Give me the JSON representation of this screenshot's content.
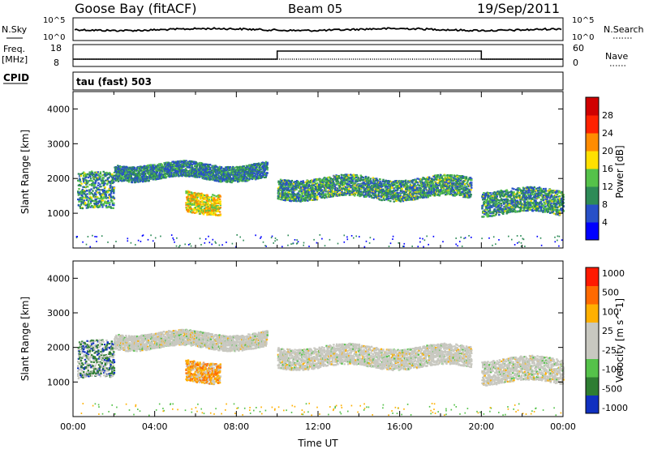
{
  "header": {
    "station": "Goose Bay (fitACF)",
    "beam": "Beam 05",
    "date": "19/Sep/2011"
  },
  "noise_panel": {
    "left_label": "N.Sky",
    "right_label": "N.Search",
    "left_ticks": [
      "10^5",
      "10^0"
    ],
    "right_ticks": [
      "10^5",
      "10^0"
    ]
  },
  "freq_panel": {
    "left_label_line1": "Freq.",
    "left_label_line2": "[MHz]",
    "right_label": "Nave",
    "left_ticks": [
      "18",
      "8"
    ],
    "right_ticks": [
      "60",
      "0"
    ],
    "cpid_label": "CPID",
    "cpid_value": "tau (fast) 503",
    "nave_step": [
      {
        "hour": 0,
        "value": 0
      },
      {
        "hour": 10,
        "value": 60
      },
      {
        "hour": 20,
        "value": 0
      }
    ]
  },
  "chart_data": [
    {
      "type": "heatmap",
      "quantity": "Power",
      "ylabel": "Slant Range [km]",
      "ylim": [
        0,
        4500
      ],
      "yticks": [
        "1000",
        "2000",
        "3000",
        "4000"
      ],
      "colorbar_label": "Power [dB]",
      "colorbar_ticks": [
        "4",
        "8",
        "12",
        "16",
        "20",
        "24",
        "28"
      ],
      "colorbar_colors": [
        "#0000ff",
        "#2850c8",
        "#2e8b57",
        "#55c24a",
        "#ffe000",
        "#ff8c00",
        "#ff2200",
        "#d00000"
      ],
      "echo_bands": [
        {
          "hours": [
            0.2,
            2.0
          ],
          "range_km": [
            1100,
            2150
          ],
          "level": "mixed"
        },
        {
          "hours": [
            2.0,
            9.5
          ],
          "range_km": [
            2000,
            2450
          ],
          "level": "low-mid"
        },
        {
          "hours": [
            5.5,
            7.2
          ],
          "range_km": [
            1050,
            1650
          ],
          "level": "mid-high"
        },
        {
          "hours": [
            10.0,
            19.5
          ],
          "range_km": [
            1450,
            2050
          ],
          "level": "mid"
        },
        {
          "hours": [
            20.0,
            24.0
          ],
          "range_km": [
            1000,
            1700
          ],
          "level": "mid"
        }
      ]
    },
    {
      "type": "heatmap",
      "quantity": "Velocity",
      "ylabel": "Slant Range [km]",
      "ylim": [
        0,
        4500
      ],
      "yticks": [
        "1000",
        "2000",
        "3000",
        "4000"
      ],
      "xlabel": "Time UT",
      "xticks": [
        "00:00",
        "04:00",
        "08:00",
        "12:00",
        "16:00",
        "20:00",
        "00:00"
      ],
      "colorbar_label": "Velocity [m s^-1]",
      "colorbar_ticks": [
        "1000",
        "500",
        "100",
        "25",
        "-25",
        "-100",
        "-500",
        "-1000"
      ],
      "colorbar_colors": [
        "#1030c0",
        "#2e7d32",
        "#55c24a",
        "#c8c8c0",
        "#c8c8c0",
        "#ffb000",
        "#ff6a00",
        "#ff1a00"
      ],
      "ground_scatter_color": "#c8c8c0"
    }
  ]
}
